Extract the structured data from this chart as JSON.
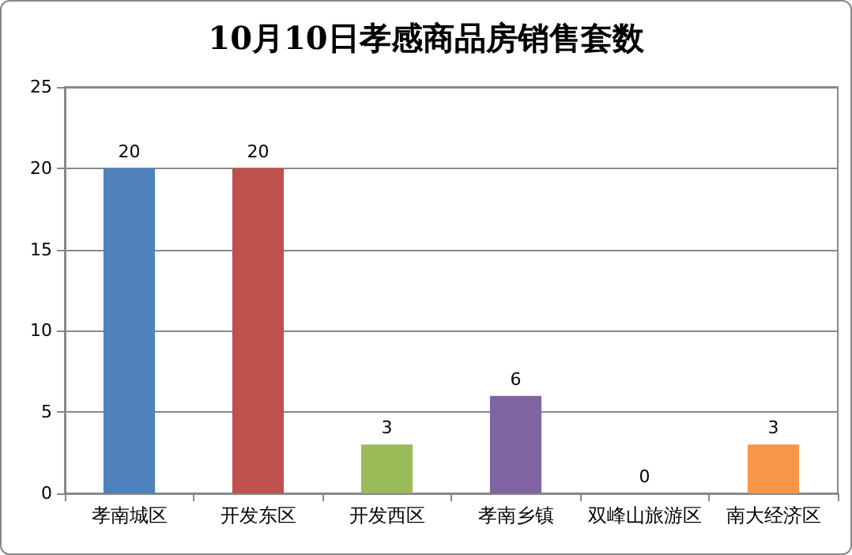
{
  "chart_data": {
    "type": "bar",
    "title": "10月10日孝感商品房销售套数",
    "categories": [
      "孝南城区",
      "开发东区",
      "开发西区",
      "孝南乡镇",
      "双峰山旅游区",
      "南大经济区"
    ],
    "values": [
      20,
      20,
      3,
      6,
      0,
      3
    ],
    "colors": [
      "#4f81bd",
      "#c0504d",
      "#9bbb59",
      "#8064a2",
      "#4bacc6",
      "#f79646"
    ],
    "ylim": [
      0,
      25
    ],
    "yticks": [
      0,
      5,
      10,
      15,
      20,
      25
    ],
    "grid": "y",
    "data_labels": true
  }
}
